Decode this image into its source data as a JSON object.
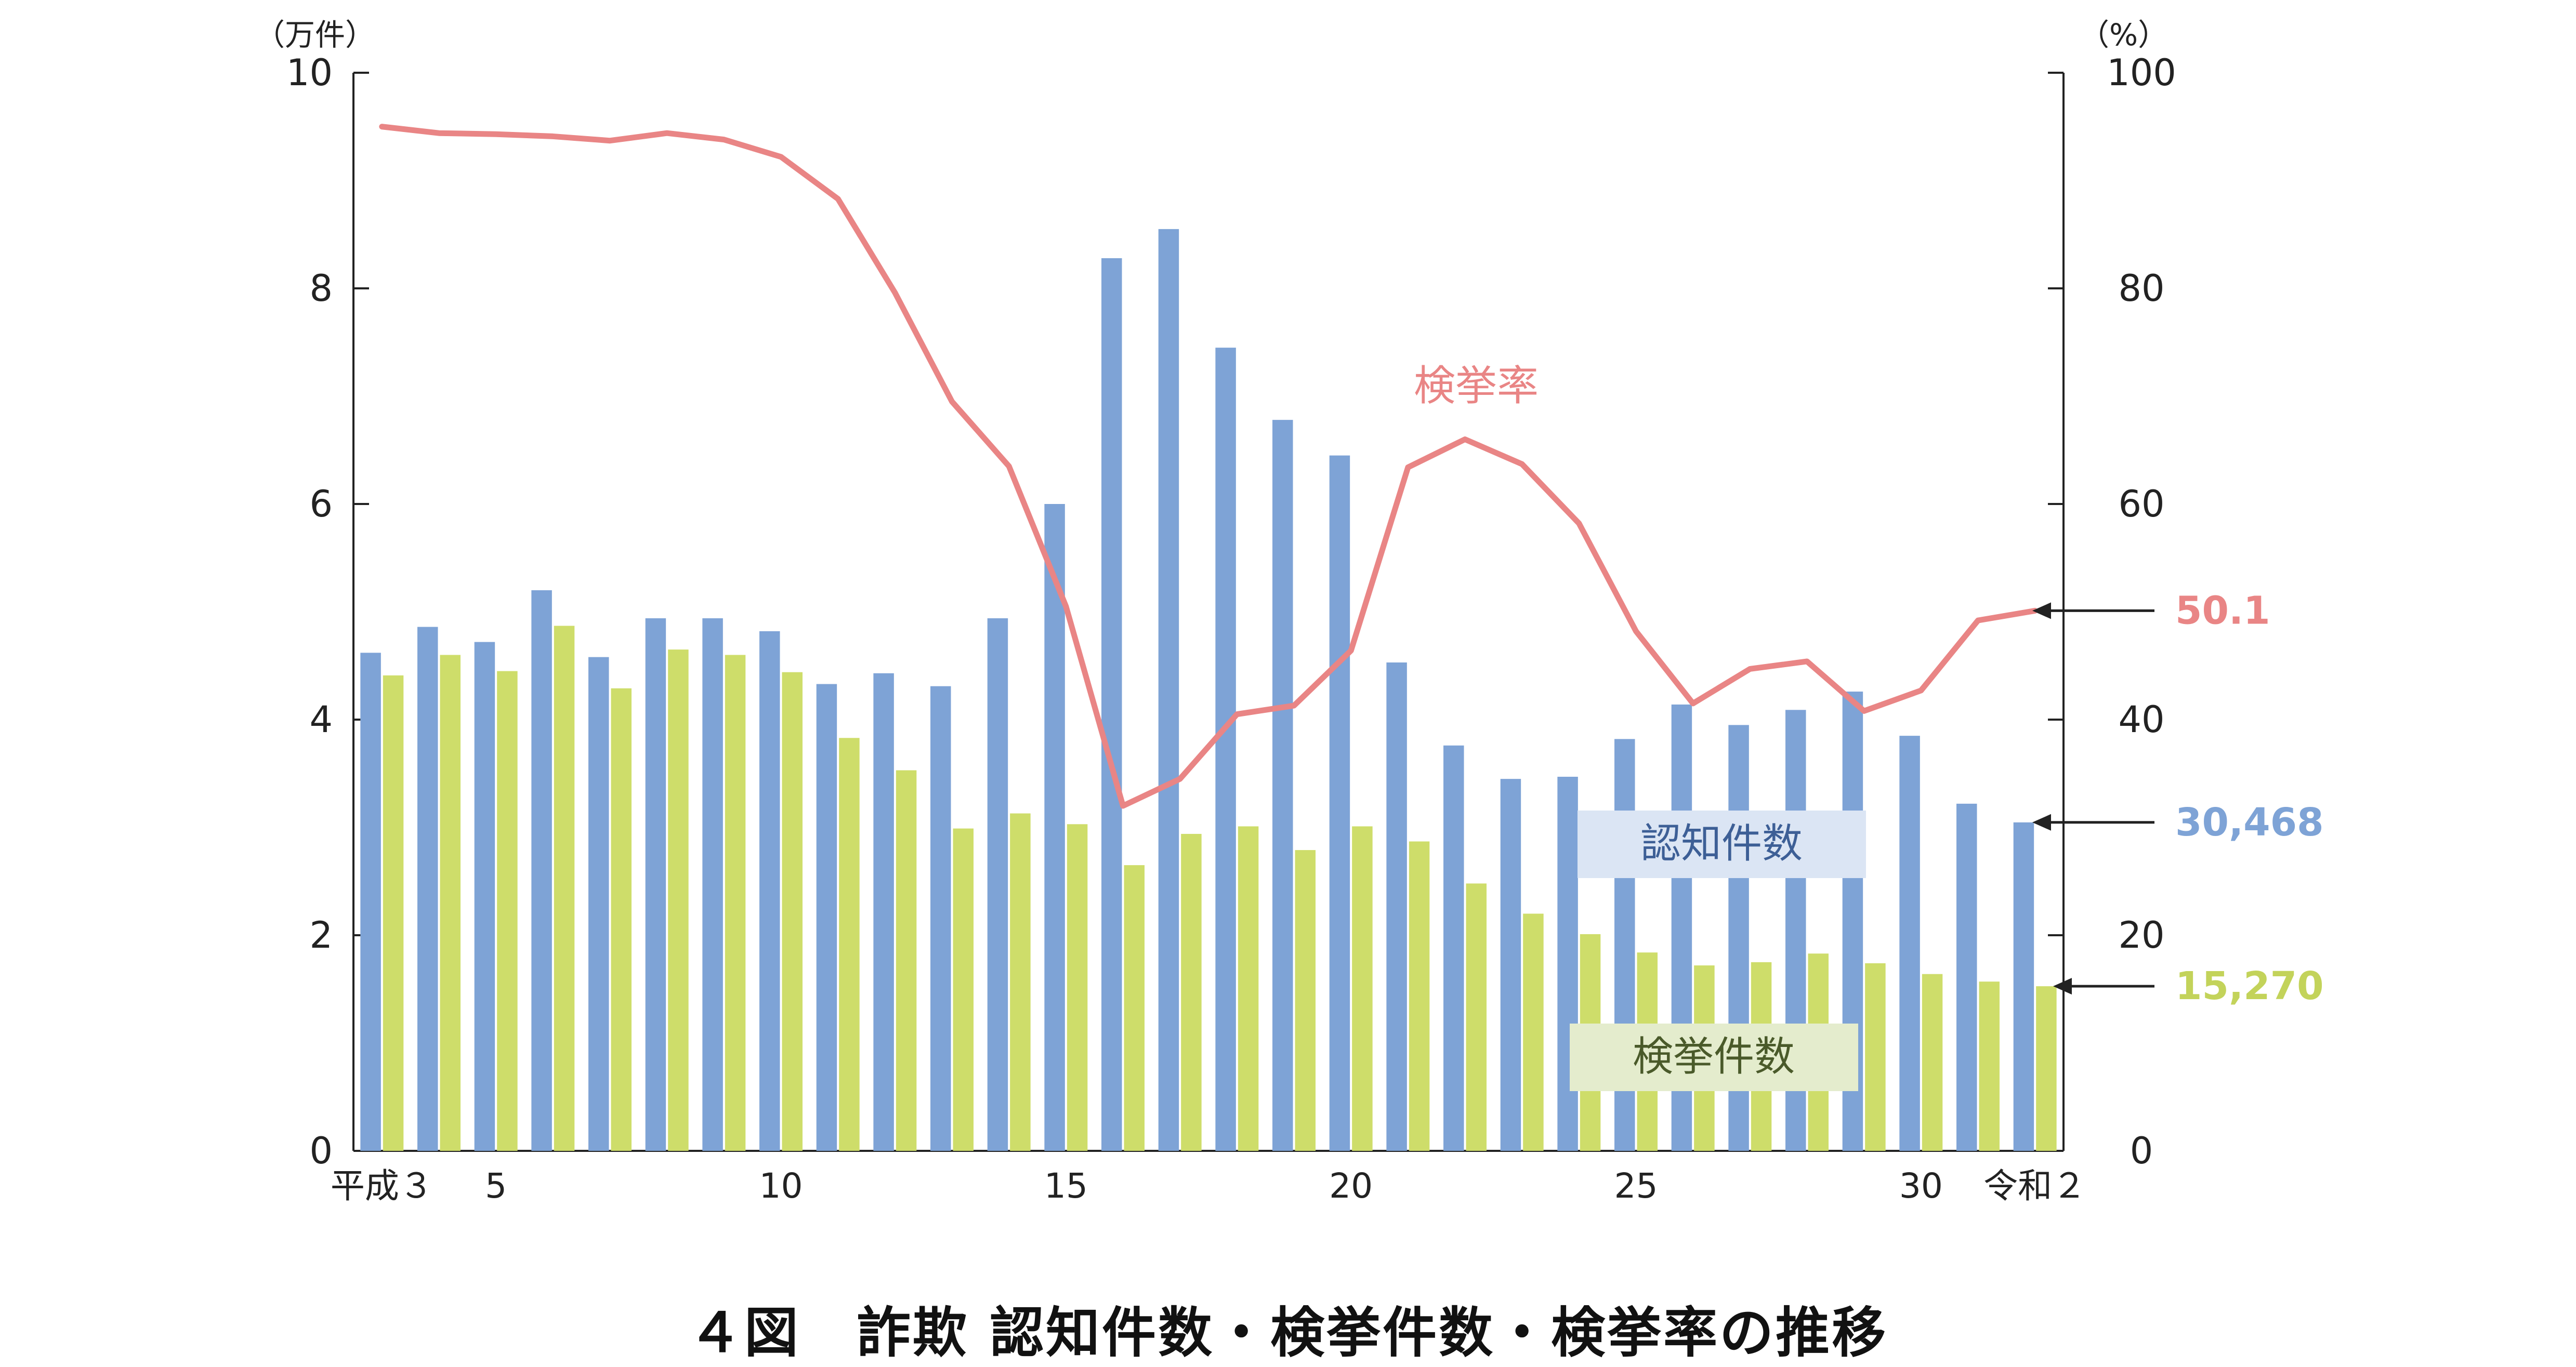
{
  "caption": "４図　詐欺 認知件数・検挙件数・検挙率の推移",
  "colors": {
    "recognized": "#7ea3d6",
    "cleared": "#cedd6a",
    "rate": "#e98585",
    "recognized_label_bg": "#dbe5f4",
    "cleared_label_bg": "#e4eccd",
    "axis": "#222222"
  },
  "chart_data": {
    "type": "bar",
    "left_axis": {
      "unit": "（万件）",
      "ticks": [
        "0",
        "2",
        "4",
        "6",
        "8",
        "10"
      ],
      "ylim": [
        0,
        10
      ]
    },
    "right_axis": {
      "unit": "（%）",
      "ticks": [
        "0",
        "20",
        "40",
        "60",
        "80",
        "100"
      ],
      "ylim": [
        0,
        100
      ]
    },
    "x_tick_labels": [
      {
        "text": "平成３",
        "index": 0
      },
      {
        "text": "5",
        "index": 2
      },
      {
        "text": "10",
        "index": 7
      },
      {
        "text": "15",
        "index": 12
      },
      {
        "text": "20",
        "index": 17
      },
      {
        "text": "25",
        "index": 22
      },
      {
        "text": "30",
        "index": 27
      },
      {
        "text": "令和２",
        "index": 29
      }
    ],
    "categories": [
      "平成3",
      "4",
      "5",
      "6",
      "7",
      "8",
      "9",
      "10",
      "11",
      "12",
      "13",
      "14",
      "15",
      "16",
      "17",
      "18",
      "19",
      "20",
      "21",
      "22",
      "23",
      "24",
      "25",
      "26",
      "27",
      "28",
      "29",
      "30",
      "令和元",
      "2"
    ],
    "series": [
      {
        "name": "認知件数",
        "axis": "left",
        "type": "bar",
        "values": [
          4.62,
          4.86,
          4.72,
          5.2,
          4.58,
          4.94,
          4.94,
          4.82,
          4.33,
          4.43,
          4.31,
          4.94,
          6.0,
          8.28,
          8.55,
          7.45,
          6.78,
          6.45,
          4.53,
          3.76,
          3.45,
          3.47,
          3.82,
          4.14,
          3.95,
          4.09,
          4.26,
          3.85,
          3.22,
          3.0468
        ]
      },
      {
        "name": "検挙件数",
        "axis": "left",
        "type": "bar",
        "values": [
          4.41,
          4.6,
          4.45,
          4.87,
          4.29,
          4.65,
          4.6,
          4.44,
          3.83,
          3.53,
          2.99,
          3.13,
          3.03,
          2.65,
          2.94,
          3.01,
          2.79,
          3.01,
          2.87,
          2.48,
          2.2,
          2.01,
          1.84,
          1.72,
          1.75,
          1.83,
          1.74,
          1.64,
          1.57,
          1.527
        ]
      },
      {
        "name": "検挙率",
        "axis": "right",
        "type": "line",
        "values": [
          95.0,
          94.4,
          94.3,
          94.1,
          93.7,
          94.4,
          93.8,
          92.2,
          88.3,
          79.6,
          69.5,
          63.5,
          50.5,
          32.0,
          34.5,
          40.5,
          41.3,
          46.4,
          63.4,
          66.0,
          63.7,
          58.2,
          48.2,
          41.5,
          44.7,
          45.4,
          40.8,
          42.7,
          49.2,
          50.1
        ]
      }
    ],
    "annotations": {
      "rate_label": "検挙率",
      "recognized_label": "認知件数",
      "cleared_label": "検挙件数",
      "rate_last_value": "50.1",
      "recognized_last_value": "30,468",
      "cleared_last_value": "15,270"
    },
    "grid": false,
    "legend": "inline"
  }
}
